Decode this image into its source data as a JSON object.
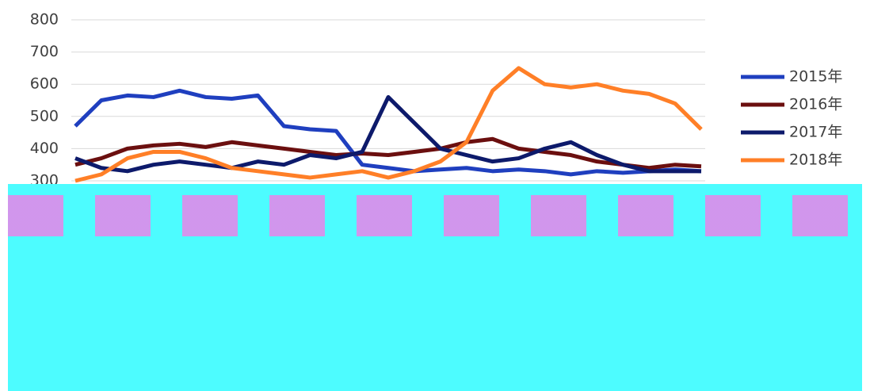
{
  "chart_data": {
    "type": "line",
    "series": [
      {
        "name": "2015年",
        "color": "#1f3fbf",
        "values": [
          470,
          550,
          565,
          560,
          580,
          560,
          555,
          565,
          470,
          460,
          455,
          350,
          340,
          330,
          335,
          340,
          330,
          335,
          330,
          320,
          330,
          325,
          330,
          335,
          330
        ]
      },
      {
        "name": "2016年",
        "color": "#6b0f0f",
        "values": [
          350,
          370,
          400,
          410,
          415,
          405,
          420,
          410,
          400,
          390,
          380,
          385,
          380,
          390,
          400,
          420,
          430,
          400,
          390,
          380,
          360,
          350,
          340,
          350,
          345
        ]
      },
      {
        "name": "2017年",
        "color": "#0d1a6b",
        "values": [
          370,
          340,
          330,
          350,
          360,
          350,
          340,
          360,
          350,
          380,
          370,
          390,
          560,
          480,
          400,
          380,
          360,
          370,
          400,
          420,
          380,
          350,
          330,
          330,
          330
        ]
      },
      {
        "name": "2018年",
        "color": "#ff7f27",
        "values": [
          300,
          320,
          370,
          390,
          390,
          370,
          340,
          330,
          320,
          310,
          320,
          330,
          310,
          330,
          360,
          420,
          580,
          650,
          600,
          590,
          600,
          580,
          570,
          540,
          460
        ]
      }
    ],
    "ylim": [
      300,
      800
    ],
    "yticks": [
      300,
      400,
      500,
      600,
      700,
      800
    ],
    "grid": true
  }
}
